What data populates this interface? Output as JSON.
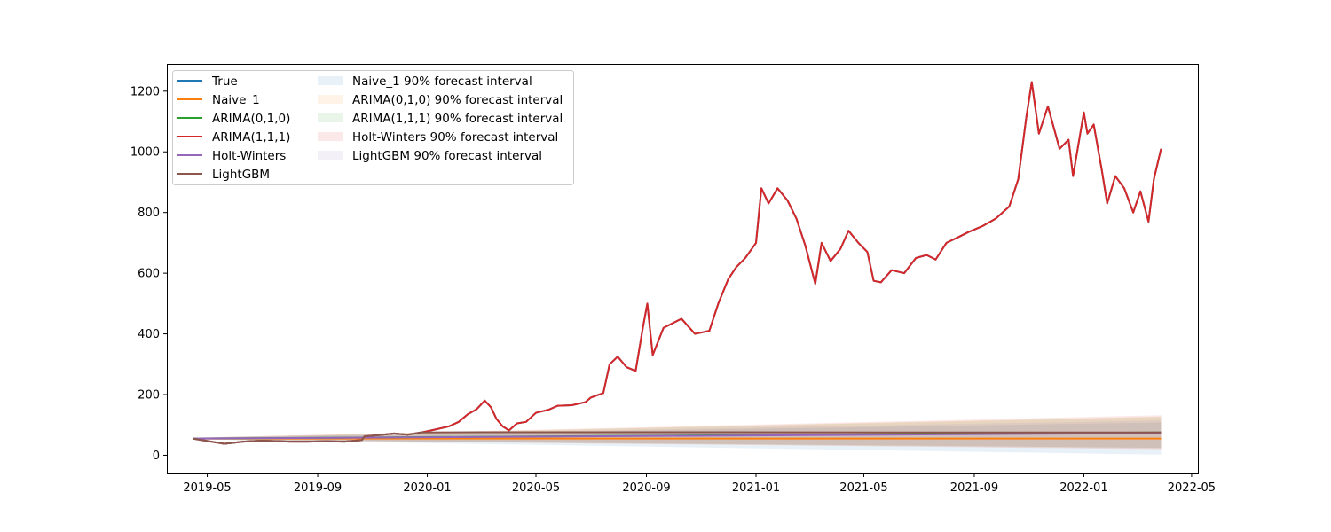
{
  "chart_data": {
    "type": "line",
    "title": "",
    "xlabel": "",
    "ylabel": "",
    "xlim": [
      "2019-03-17",
      "2022-05-08"
    ],
    "ylim": [
      -60,
      1290
    ],
    "grid": false,
    "legend_position": "upper-left",
    "x_ticks": [
      "2019-05-01",
      "2019-09-01",
      "2020-01-01",
      "2020-05-01",
      "2020-09-01",
      "2021-01-01",
      "2021-05-01",
      "2021-09-01",
      "2022-01-01",
      "2022-05-01"
    ],
    "x_tick_labels": [
      "2019-05",
      "2019-09",
      "2020-01",
      "2020-05",
      "2020-09",
      "2021-01",
      "2021-05",
      "2021-09",
      "2022-01",
      "2022-05"
    ],
    "y_ticks": [
      0,
      200,
      400,
      600,
      800,
      1000,
      1200
    ],
    "y_tick_labels": [
      "0",
      "200",
      "400",
      "600",
      "800",
      "1000",
      "1200"
    ],
    "series": [
      {
        "name": "True",
        "color": "#1f77b4",
        "points": [
          [
            "2019-04-15",
            55
          ],
          [
            "2019-05-01",
            47
          ],
          [
            "2019-05-20",
            38
          ],
          [
            "2019-06-10",
            45
          ],
          [
            "2019-07-01",
            48
          ],
          [
            "2019-08-01",
            45
          ],
          [
            "2019-08-20",
            45
          ],
          [
            "2019-09-10",
            46
          ],
          [
            "2019-10-01",
            45
          ],
          [
            "2019-10-20",
            50
          ],
          [
            "2019-10-23",
            62
          ],
          [
            "2019-11-10",
            67
          ],
          [
            "2019-11-25",
            72
          ],
          [
            "2019-12-10",
            68
          ],
          [
            "2019-12-25",
            75
          ],
          [
            "2020-01-10",
            85
          ],
          [
            "2020-01-25",
            95
          ],
          [
            "2020-02-05",
            110
          ],
          [
            "2020-02-15",
            135
          ],
          [
            "2020-02-25",
            152
          ],
          [
            "2020-03-05",
            180
          ],
          [
            "2020-03-12",
            158
          ],
          [
            "2020-03-18",
            120
          ],
          [
            "2020-03-25",
            95
          ],
          [
            "2020-04-01",
            82
          ],
          [
            "2020-04-10",
            105
          ],
          [
            "2020-04-20",
            110
          ],
          [
            "2020-05-01",
            140
          ],
          [
            "2020-05-15",
            150
          ],
          [
            "2020-05-25",
            163
          ],
          [
            "2020-06-10",
            165
          ],
          [
            "2020-06-25",
            175
          ],
          [
            "2020-07-01",
            190
          ],
          [
            "2020-07-15",
            205
          ],
          [
            "2020-07-22",
            300
          ],
          [
            "2020-07-31",
            325
          ],
          [
            "2020-08-10",
            290
          ],
          [
            "2020-08-20",
            278
          ],
          [
            "2020-08-28",
            420
          ],
          [
            "2020-09-02",
            500
          ],
          [
            "2020-09-08",
            330
          ],
          [
            "2020-09-20",
            420
          ],
          [
            "2020-10-10",
            450
          ],
          [
            "2020-10-25",
            400
          ],
          [
            "2020-11-10",
            410
          ],
          [
            "2020-11-20",
            500
          ],
          [
            "2020-12-01",
            580
          ],
          [
            "2020-12-10",
            620
          ],
          [
            "2020-12-20",
            650
          ],
          [
            "2021-01-01",
            700
          ],
          [
            "2021-01-07",
            880
          ],
          [
            "2021-01-15",
            830
          ],
          [
            "2021-01-25",
            880
          ],
          [
            "2021-02-05",
            840
          ],
          [
            "2021-02-15",
            780
          ],
          [
            "2021-02-25",
            690
          ],
          [
            "2021-03-08",
            565
          ],
          [
            "2021-03-15",
            700
          ],
          [
            "2021-03-25",
            640
          ],
          [
            "2021-04-05",
            680
          ],
          [
            "2021-04-14",
            740
          ],
          [
            "2021-04-25",
            700
          ],
          [
            "2021-05-05",
            670
          ],
          [
            "2021-05-12",
            575
          ],
          [
            "2021-05-20",
            570
          ],
          [
            "2021-06-01",
            610
          ],
          [
            "2021-06-15",
            600
          ],
          [
            "2021-06-28",
            650
          ],
          [
            "2021-07-10",
            660
          ],
          [
            "2021-07-20",
            645
          ],
          [
            "2021-08-01",
            700
          ],
          [
            "2021-08-15",
            720
          ],
          [
            "2021-08-25",
            735
          ],
          [
            "2021-09-10",
            755
          ],
          [
            "2021-09-25",
            780
          ],
          [
            "2021-10-10",
            820
          ],
          [
            "2021-10-20",
            910
          ],
          [
            "2021-10-29",
            1115
          ],
          [
            "2021-11-04",
            1230
          ],
          [
            "2021-11-12",
            1060
          ],
          [
            "2021-11-22",
            1150
          ],
          [
            "2021-12-05",
            1010
          ],
          [
            "2021-12-15",
            1040
          ],
          [
            "2021-12-20",
            920
          ],
          [
            "2022-01-01",
            1130
          ],
          [
            "2022-01-05",
            1060
          ],
          [
            "2022-01-12",
            1090
          ],
          [
            "2022-01-21",
            940
          ],
          [
            "2022-01-27",
            830
          ],
          [
            "2022-02-05",
            920
          ],
          [
            "2022-02-15",
            880
          ],
          [
            "2022-02-25",
            800
          ],
          [
            "2022-03-05",
            870
          ],
          [
            "2022-03-14",
            770
          ],
          [
            "2022-03-20",
            910
          ],
          [
            "2022-03-28",
            1010
          ]
        ]
      },
      {
        "name": "Naive_1",
        "color": "#ff7f0e",
        "points": [
          [
            "2019-04-15",
            55
          ],
          [
            "2022-03-28",
            55
          ]
        ]
      },
      {
        "name": "ARIMA(0,1,0)",
        "color": "#2ca02c",
        "points": [
          [
            "2019-04-15",
            55
          ],
          [
            "2022-03-28",
            75
          ]
        ]
      },
      {
        "name": "ARIMA(1,1,1)",
        "color": "#d62728",
        "points": [
          [
            "2019-04-15",
            55
          ],
          [
            "2019-05-01",
            47
          ],
          [
            "2019-05-20",
            38
          ],
          [
            "2019-06-10",
            45
          ],
          [
            "2019-07-01",
            48
          ],
          [
            "2019-08-01",
            45
          ],
          [
            "2019-08-20",
            45
          ],
          [
            "2019-09-10",
            46
          ],
          [
            "2019-10-01",
            45
          ],
          [
            "2019-10-20",
            50
          ],
          [
            "2019-10-23",
            62
          ],
          [
            "2019-11-10",
            67
          ],
          [
            "2019-11-25",
            72
          ],
          [
            "2019-12-10",
            68
          ],
          [
            "2019-12-25",
            75
          ],
          [
            "2020-01-10",
            85
          ],
          [
            "2020-01-25",
            95
          ],
          [
            "2020-02-05",
            110
          ],
          [
            "2020-02-15",
            135
          ],
          [
            "2020-02-25",
            152
          ],
          [
            "2020-03-05",
            180
          ],
          [
            "2020-03-12",
            158
          ],
          [
            "2020-03-18",
            120
          ],
          [
            "2020-03-25",
            95
          ],
          [
            "2020-04-01",
            82
          ],
          [
            "2020-04-10",
            105
          ],
          [
            "2020-04-20",
            110
          ],
          [
            "2020-05-01",
            140
          ],
          [
            "2020-05-15",
            150
          ],
          [
            "2020-05-25",
            163
          ],
          [
            "2020-06-10",
            165
          ],
          [
            "2020-06-25",
            175
          ],
          [
            "2020-07-01",
            190
          ],
          [
            "2020-07-15",
            205
          ],
          [
            "2020-07-22",
            300
          ],
          [
            "2020-07-31",
            325
          ],
          [
            "2020-08-10",
            290
          ],
          [
            "2020-08-20",
            278
          ],
          [
            "2020-08-28",
            420
          ],
          [
            "2020-09-02",
            500
          ],
          [
            "2020-09-08",
            330
          ],
          [
            "2020-09-20",
            420
          ],
          [
            "2020-10-10",
            450
          ],
          [
            "2020-10-25",
            400
          ],
          [
            "2020-11-10",
            410
          ],
          [
            "2020-11-20",
            500
          ],
          [
            "2020-12-01",
            580
          ],
          [
            "2020-12-10",
            620
          ],
          [
            "2020-12-20",
            650
          ],
          [
            "2021-01-01",
            700
          ],
          [
            "2021-01-07",
            880
          ],
          [
            "2021-01-15",
            830
          ],
          [
            "2021-01-25",
            880
          ],
          [
            "2021-02-05",
            840
          ],
          [
            "2021-02-15",
            780
          ],
          [
            "2021-02-25",
            690
          ],
          [
            "2021-03-08",
            565
          ],
          [
            "2021-03-15",
            700
          ],
          [
            "2021-03-25",
            640
          ],
          [
            "2021-04-05",
            680
          ],
          [
            "2021-04-14",
            740
          ],
          [
            "2021-04-25",
            700
          ],
          [
            "2021-05-05",
            670
          ],
          [
            "2021-05-12",
            575
          ],
          [
            "2021-05-20",
            570
          ],
          [
            "2021-06-01",
            610
          ],
          [
            "2021-06-15",
            600
          ],
          [
            "2021-06-28",
            650
          ],
          [
            "2021-07-10",
            660
          ],
          [
            "2021-07-20",
            645
          ],
          [
            "2021-08-01",
            700
          ],
          [
            "2021-08-15",
            720
          ],
          [
            "2021-08-25",
            735
          ],
          [
            "2021-09-10",
            755
          ],
          [
            "2021-09-25",
            780
          ],
          [
            "2021-10-10",
            820
          ],
          [
            "2021-10-20",
            910
          ],
          [
            "2021-10-29",
            1115
          ],
          [
            "2021-11-04",
            1230
          ],
          [
            "2021-11-12",
            1060
          ],
          [
            "2021-11-22",
            1150
          ],
          [
            "2021-12-05",
            1010
          ],
          [
            "2021-12-15",
            1040
          ],
          [
            "2021-12-20",
            920
          ],
          [
            "2022-01-01",
            1130
          ],
          [
            "2022-01-05",
            1060
          ],
          [
            "2022-01-12",
            1090
          ],
          [
            "2022-01-21",
            940
          ],
          [
            "2022-01-27",
            830
          ],
          [
            "2022-02-05",
            920
          ],
          [
            "2022-02-15",
            880
          ],
          [
            "2022-02-25",
            800
          ],
          [
            "2022-03-05",
            870
          ],
          [
            "2022-03-14",
            770
          ],
          [
            "2022-03-20",
            910
          ],
          [
            "2022-03-28",
            1010
          ]
        ]
      },
      {
        "name": "Holt-Winters",
        "color": "#9467bd",
        "points": [
          [
            "2019-04-15",
            55
          ],
          [
            "2022-03-28",
            73
          ]
        ]
      },
      {
        "name": "LightGBM",
        "color": "#8c564b",
        "points": [
          [
            "2019-04-15",
            55
          ],
          [
            "2019-05-01",
            47
          ],
          [
            "2019-05-20",
            38
          ],
          [
            "2019-06-10",
            45
          ],
          [
            "2019-07-01",
            48
          ],
          [
            "2019-08-01",
            45
          ],
          [
            "2019-08-20",
            45
          ],
          [
            "2019-09-10",
            46
          ],
          [
            "2019-10-01",
            45
          ],
          [
            "2019-10-20",
            50
          ],
          [
            "2019-10-23",
            62
          ],
          [
            "2019-11-10",
            67
          ],
          [
            "2019-11-25",
            72
          ],
          [
            "2019-12-10",
            68
          ],
          [
            "2019-12-25",
            75
          ],
          [
            "2020-03-01",
            76
          ],
          [
            "2020-06-01",
            76
          ],
          [
            "2020-12-01",
            76
          ],
          [
            "2021-06-01",
            75
          ],
          [
            "2021-12-01",
            75
          ],
          [
            "2022-03-28",
            75
          ]
        ]
      }
    ],
    "intervals": [
      {
        "name": "Naive_1 90% forecast interval",
        "color": "#1f77b4",
        "lower": [
          [
            "2019-04-15",
            52
          ],
          [
            "2022-03-28",
            2
          ]
        ],
        "upper": [
          [
            "2019-04-15",
            58
          ],
          [
            "2022-03-28",
            108
          ]
        ]
      },
      {
        "name": "ARIMA(0,1,0) 90% forecast interval",
        "color": "#ff7f0e",
        "lower": [
          [
            "2019-04-15",
            52
          ],
          [
            "2022-03-28",
            22
          ]
        ],
        "upper": [
          [
            "2019-04-15",
            58
          ],
          [
            "2022-03-28",
            128
          ]
        ]
      },
      {
        "name": "ARIMA(1,1,1) 90% forecast interval",
        "color": "#2ca02c",
        "lower": [
          [
            "2019-04-15",
            52
          ],
          [
            "2022-03-28",
            24
          ]
        ],
        "upper": [
          [
            "2019-04-15",
            58
          ],
          [
            "2022-03-28",
            126
          ]
        ]
      },
      {
        "name": "Holt-Winters 90% forecast interval",
        "color": "#d62728",
        "lower": [
          [
            "2019-04-15",
            52
          ],
          [
            "2022-03-28",
            20
          ]
        ],
        "upper": [
          [
            "2019-04-15",
            58
          ],
          [
            "2022-03-28",
            132
          ]
        ]
      },
      {
        "name": "LightGBM 90% forecast interval",
        "color": "#9467bd",
        "lower": [
          [
            "2019-04-15",
            52
          ],
          [
            "2022-03-28",
            25
          ]
        ],
        "upper": [
          [
            "2019-04-15",
            58
          ],
          [
            "2022-03-28",
            115
          ]
        ]
      }
    ]
  }
}
